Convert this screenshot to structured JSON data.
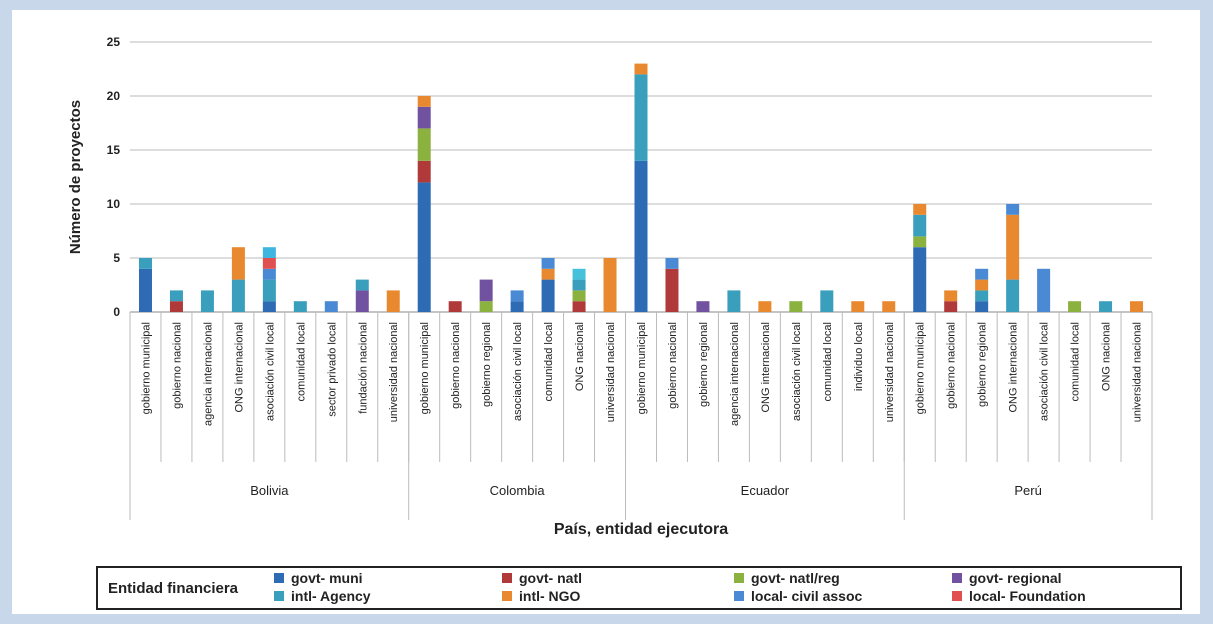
{
  "chart_data": {
    "type": "bar",
    "stacked": true,
    "xlabel": "País, entidad ejecutora",
    "ylabel": "Número de proyectos",
    "ylim": [
      0,
      25
    ],
    "yticks": [
      0,
      5,
      10,
      15,
      20,
      25
    ],
    "grid": true,
    "legend_position": "bottom",
    "legend_title": "Entidad financiera",
    "groups": [
      {
        "name": "Bolivia",
        "start": 0,
        "end": 8
      },
      {
        "name": "Colombia",
        "start": 9,
        "end": 15
      },
      {
        "name": "Ecuador",
        "start": 16,
        "end": 24
      },
      {
        "name": "Perú",
        "start": 25,
        "end": 32
      }
    ],
    "categories": [
      "gobierno municipal",
      "gobierno nacional",
      "agencia internacional",
      "ONG internacional",
      "asociación civil local",
      "comunidad local",
      "sector privado local",
      "fundación nacional",
      "universidad nacional",
      "gobierno municipal",
      "gobierno nacional",
      "gobierno regional",
      "asociación civil local",
      "comunidad local",
      "ONG nacional",
      "universidad nacional",
      "gobierno municipal",
      "gobierno nacional",
      "gobierno regional",
      "agencia internacional",
      "ONG internacional",
      "asociación civil local",
      "comunidad local",
      "individuo local",
      "universidad nacional",
      "gobierno municipal",
      "gobierno nacional",
      "gobierno regional",
      "ONG internacional",
      "asociación civil local",
      "comunidad local",
      "ONG nacional",
      "universidad nacional"
    ],
    "series": [
      {
        "name": "govt- muni",
        "color": "#2e6bb5",
        "values": [
          4,
          0,
          0,
          0,
          1,
          0,
          0,
          0,
          0,
          12,
          0,
          0,
          1,
          3,
          0,
          0,
          14,
          0,
          0,
          0,
          0,
          0,
          0,
          0,
          0,
          6,
          0,
          1,
          0,
          0,
          0,
          0,
          0
        ]
      },
      {
        "name": "govt- natl",
        "color": "#b03a3a",
        "values": [
          0,
          1,
          0,
          0,
          0,
          0,
          0,
          0,
          0,
          2,
          1,
          0,
          0,
          0,
          1,
          0,
          0,
          4,
          0,
          0,
          0,
          0,
          0,
          0,
          0,
          0,
          1,
          0,
          0,
          0,
          0,
          0,
          0
        ]
      },
      {
        "name": "govt- natl/reg",
        "color": "#8bb23f",
        "values": [
          0,
          0,
          0,
          0,
          0,
          0,
          0,
          0,
          0,
          3,
          0,
          1,
          0,
          0,
          1,
          0,
          0,
          0,
          0,
          0,
          0,
          1,
          0,
          0,
          0,
          1,
          0,
          0,
          0,
          0,
          1,
          0,
          0
        ]
      },
      {
        "name": "govt- regional",
        "color": "#7052a0",
        "values": [
          0,
          0,
          0,
          0,
          0,
          0,
          0,
          2,
          0,
          2,
          0,
          2,
          0,
          0,
          0,
          0,
          0,
          0,
          1,
          0,
          0,
          0,
          0,
          0,
          0,
          0,
          0,
          0,
          0,
          0,
          0,
          0,
          0
        ]
      },
      {
        "name": "intl- Agency",
        "color": "#3a9fbd",
        "values": [
          1,
          1,
          2,
          3,
          2,
          1,
          0,
          1,
          0,
          0,
          0,
          0,
          0,
          0,
          1,
          0,
          8,
          0,
          0,
          2,
          0,
          0,
          2,
          0,
          0,
          2,
          0,
          1,
          3,
          0,
          0,
          1,
          0
        ]
      },
      {
        "name": "intl- NGO",
        "color": "#e8892f",
        "values": [
          0,
          0,
          0,
          3,
          0,
          0,
          0,
          0,
          2,
          1,
          0,
          0,
          0,
          1,
          0,
          5,
          1,
          0,
          0,
          0,
          1,
          0,
          0,
          1,
          1,
          1,
          1,
          1,
          6,
          0,
          0,
          0,
          1
        ]
      },
      {
        "name": "local- civil assoc",
        "color": "#4a8ad4",
        "values": [
          0,
          0,
          0,
          0,
          1,
          0,
          1,
          0,
          0,
          0,
          0,
          0,
          1,
          1,
          0,
          0,
          0,
          1,
          0,
          0,
          0,
          0,
          0,
          0,
          0,
          0,
          0,
          1,
          1,
          4,
          0,
          0,
          0
        ]
      },
      {
        "name": "local- Foundation",
        "color": "#e05050",
        "values": [
          0,
          0,
          0,
          0,
          1,
          0,
          0,
          0,
          0,
          0,
          0,
          0,
          0,
          0,
          0,
          0,
          0,
          0,
          0,
          0,
          0,
          0,
          0,
          0,
          0,
          0,
          0,
          0,
          0,
          0,
          0,
          0,
          0
        ]
      }
    ],
    "extra_top": [
      {
        "index": 4,
        "color": "#3fb6e0",
        "value": 1
      },
      {
        "index": 14,
        "color": "#46c1dc",
        "value": 1
      }
    ]
  }
}
